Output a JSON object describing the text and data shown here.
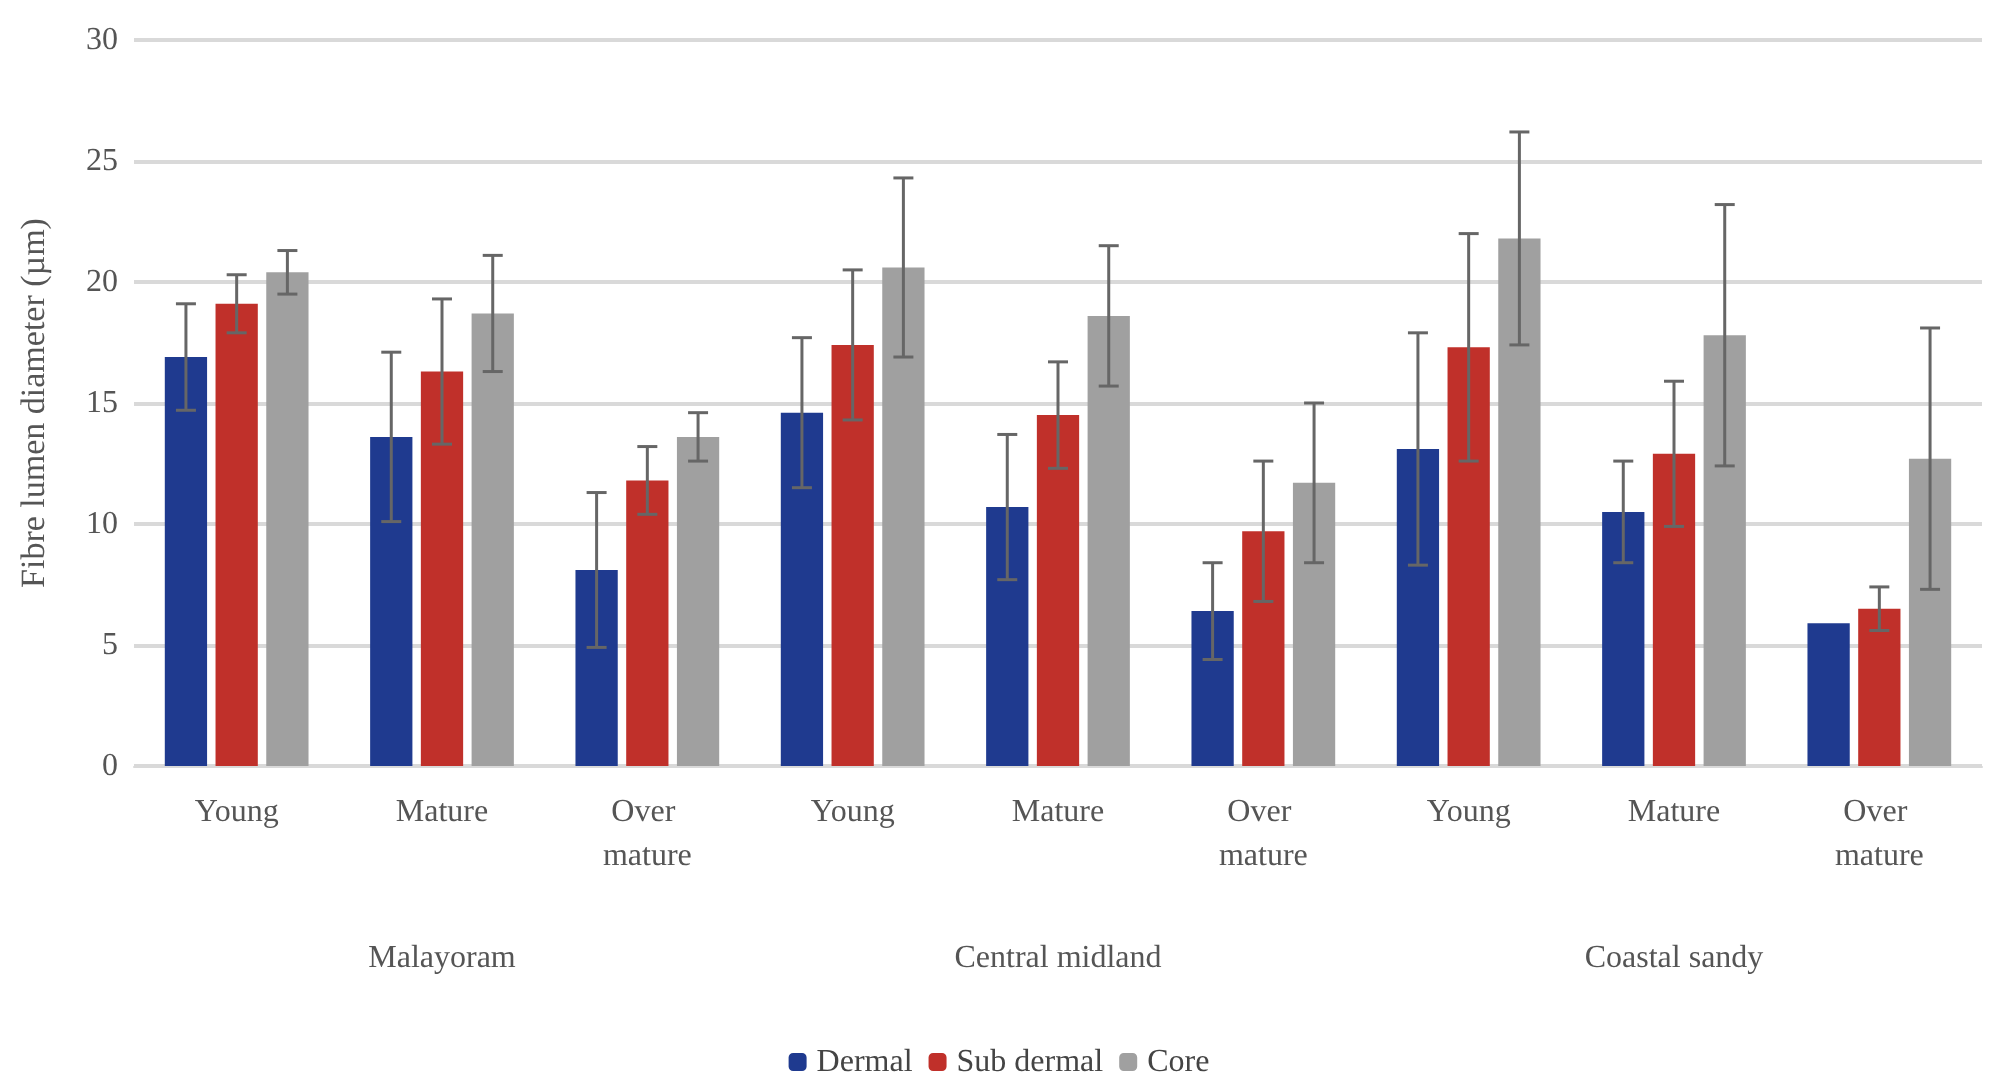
{
  "chart_data": {
    "type": "bar",
    "ylabel": "Fibre lumen diameter (µm)",
    "categories": [
      "Young",
      "Mature",
      "Over mature",
      "Young",
      "Mature",
      "Over mature",
      "Young",
      "Mature",
      "Over mature"
    ],
    "annotations": [
      "Malayoram",
      "Central midland",
      "Coastal sandy"
    ],
    "series": [
      {
        "name": "Dermal",
        "color": "#1f3a8f",
        "values": [
          16.9,
          13.6,
          8.1,
          14.6,
          10.7,
          6.4,
          13.1,
          10.5,
          5.9
        ],
        "errors": [
          2.2,
          3.5,
          3.2,
          3.1,
          3.0,
          2.0,
          4.8,
          2.1,
          null
        ]
      },
      {
        "name": "Sub dermal",
        "color": "#c0302a",
        "values": [
          19.1,
          16.3,
          11.8,
          17.4,
          14.5,
          9.7,
          17.3,
          12.9,
          6.5
        ],
        "errors": [
          1.2,
          3.0,
          1.4,
          3.1,
          2.2,
          2.9,
          4.7,
          3.0,
          0.9
        ]
      },
      {
        "name": "Core",
        "color": "#a0a0a0",
        "values": [
          20.4,
          18.7,
          13.6,
          20.6,
          18.6,
          11.7,
          21.8,
          17.8,
          12.7
        ],
        "errors": [
          0.9,
          2.4,
          1.0,
          3.7,
          2.9,
          3.3,
          4.4,
          5.4,
          5.4
        ]
      }
    ],
    "ylim": [
      0,
      30
    ],
    "yticks": [
      0,
      5,
      10,
      15,
      20,
      25,
      30
    ],
    "grid": "y",
    "legend": "bottom"
  }
}
